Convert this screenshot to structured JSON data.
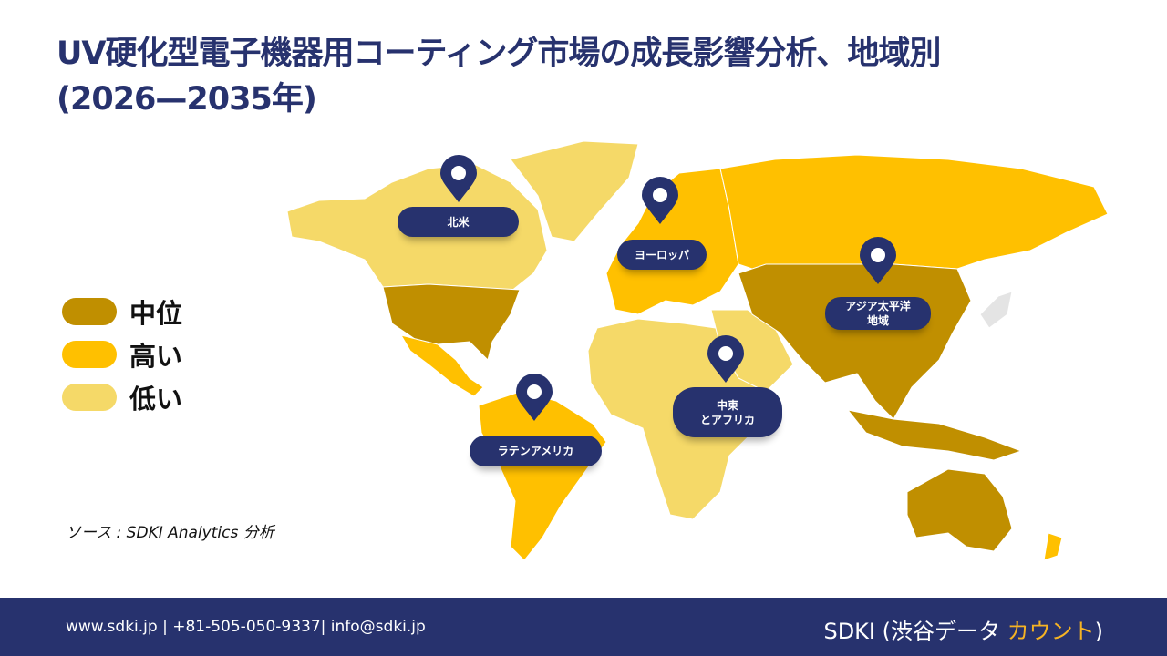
{
  "title": {
    "line1": "UV硬化型電子機器用コーティング市場の成長影響分析、地域別",
    "line2": "(2026—2035年)"
  },
  "legend": [
    {
      "label": "中位",
      "color": "#C08F00"
    },
    {
      "label": "高い",
      "color": "#FFC000"
    },
    {
      "label": "低い",
      "color": "#F5D968"
    }
  ],
  "regions": {
    "north_america": {
      "label": "北米",
      "level": "低い"
    },
    "europe": {
      "label": "ヨーロッパ",
      "level": "高い"
    },
    "asia_pacific": {
      "label": "アジア太平洋地域",
      "line1": "アジア太平洋",
      "line2": "地域",
      "level": "中位"
    },
    "mea": {
      "label": "中東とアフリカ",
      "line1": "中東",
      "line2": "とアフリカ",
      "level": "低い"
    },
    "latin_america": {
      "label": "ラテンアメリカ",
      "level": "高い"
    }
  },
  "source": "ソース : SDKI Analytics 分析",
  "footer": {
    "contact": "www.sdki.jp | +81-505-050-9337| info@sdki.jp",
    "brand_prefix": "SDKI (渋谷データ ",
    "brand_accent": "カウント",
    "brand_suffix": ")"
  },
  "colors": {
    "navy": "#27326E",
    "mid": "#C08F00",
    "high": "#FFC000",
    "low": "#F5D968"
  }
}
